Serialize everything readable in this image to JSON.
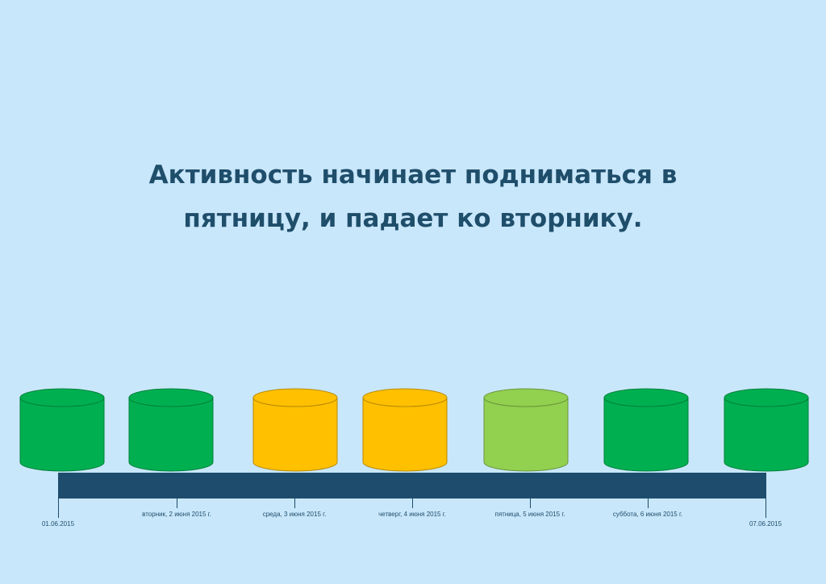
{
  "title": {
    "line1": "Активность начинает подниматься в",
    "line2": "пятницу, и падает ко вторнику."
  },
  "colors": {
    "green": "#00b050",
    "yellow": "#ffc000",
    "light_green": "#92d050",
    "bar": "#1e4c6c",
    "text": "#1f4e6b"
  },
  "days": [
    {
      "color": "green"
    },
    {
      "color": "green"
    },
    {
      "color": "yellow"
    },
    {
      "color": "yellow"
    },
    {
      "color": "light_green"
    },
    {
      "color": "green"
    },
    {
      "color": "green"
    }
  ],
  "timeline": {
    "start_label": "01.06.2015",
    "end_label": "07.06.2015",
    "ticks": [
      "вторник, 2 июня 2015 г.",
      "среда, 3 июня 2015 г.",
      "четверг, 4 июня 2015 г.",
      "пятница, 5 июня 2015 г.",
      "суббота, 6 июня 2015 г."
    ]
  }
}
